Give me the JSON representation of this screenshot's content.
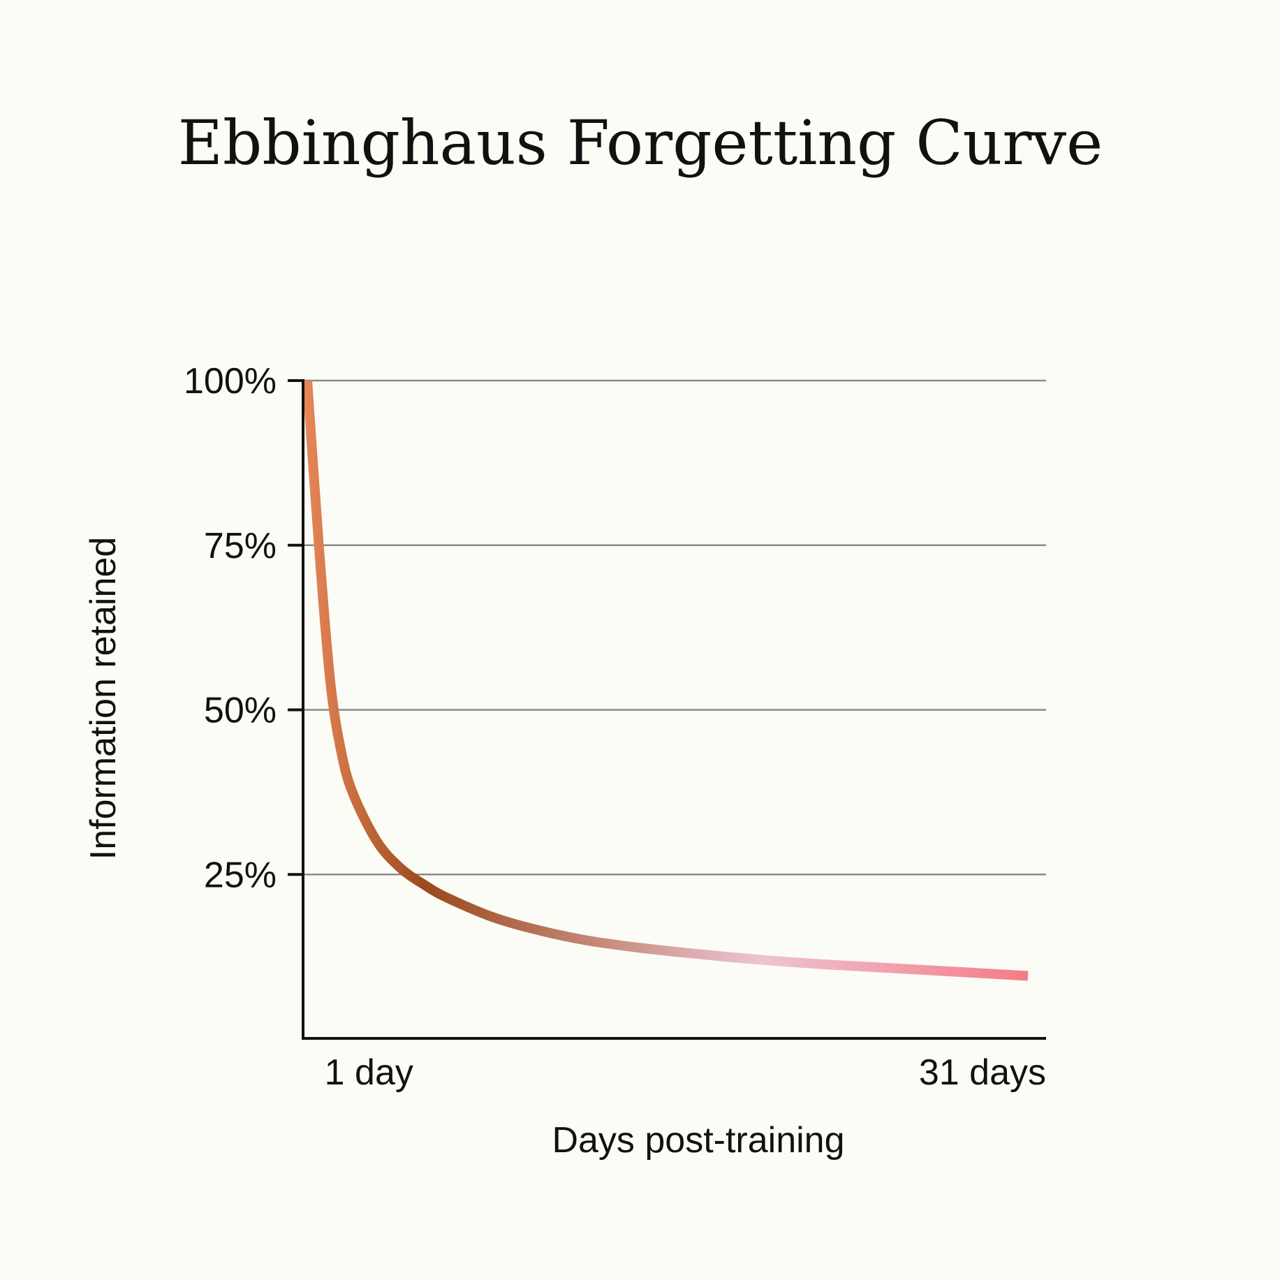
{
  "chart_data": {
    "type": "line",
    "title": "Ebbinghaus Forgetting Curve",
    "xlabel": "Days post-training",
    "ylabel": "Information retained",
    "x_ticks": [
      {
        "value": 1,
        "label": "1 day"
      },
      {
        "value": 31,
        "label": "31 days"
      }
    ],
    "y_ticks": [
      {
        "value": 100,
        "label": "100%"
      },
      {
        "value": 75,
        "label": "75%"
      },
      {
        "value": 50,
        "label": "50%"
      },
      {
        "value": 25,
        "label": "25%"
      }
    ],
    "xlim": [
      0,
      31
    ],
    "ylim": [
      0,
      100
    ],
    "grid": true,
    "series": [
      {
        "x": [
          0,
          0.5,
          1,
          1.5,
          2,
          3,
          4,
          5,
          6,
          8,
          10,
          12,
          14,
          16,
          18,
          20,
          22,
          24,
          26,
          28,
          30,
          31
        ],
        "values": [
          100,
          75,
          54,
          43,
          37,
          30,
          26,
          23.5,
          21.5,
          18.5,
          16.5,
          15,
          14,
          13.2,
          12.5,
          11.9,
          11.4,
          11,
          10.6,
          10.2,
          9.8,
          9.6
        ]
      }
    ],
    "colors": {
      "gradient": [
        "#e8875a",
        "#9a4a1c",
        "#eec4d2",
        "#f47c86"
      ],
      "grid": "#8a8a8a",
      "axis": "#111111"
    }
  }
}
